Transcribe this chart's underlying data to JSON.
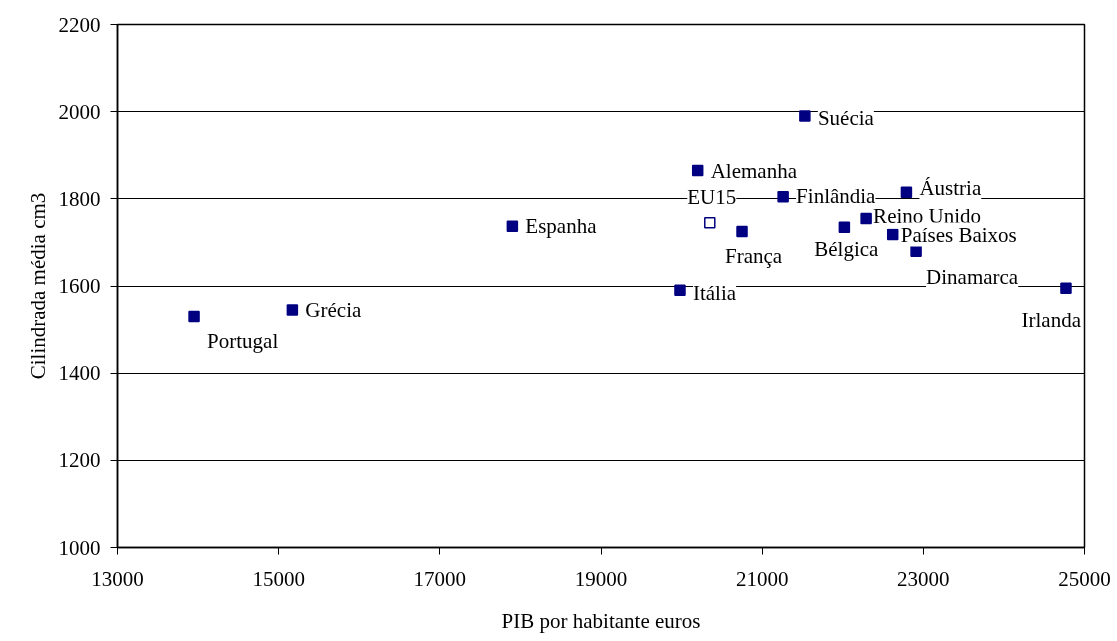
{
  "chart_data": {
    "type": "scatter",
    "xlabel": "PIB por habitante euros",
    "ylabel": "Cilindrada média cm3",
    "xlim": [
      13000,
      25000
    ],
    "xticks": [
      13000,
      15000,
      17000,
      19000,
      21000,
      23000,
      25000
    ],
    "ylim": [
      1000,
      2200
    ],
    "yticks": [
      1000,
      1200,
      1400,
      1600,
      1800,
      2000,
      2200
    ],
    "grid": "y",
    "series": [
      {
        "color": "#000080",
        "marker": "square",
        "x": [
          13950,
          15170,
          17900,
          19980,
          20200,
          20750,
          21260,
          21530,
          22020,
          22290,
          22620,
          22790,
          22910,
          24770
        ],
        "values": [
          1530,
          1545,
          1737,
          1590,
          1865,
          1725,
          1805,
          1990,
          1735,
          1755,
          1718,
          1815,
          1680,
          1595
        ]
      },
      {
        "color": "#000080",
        "marker": "square_open",
        "x": [
          20350
        ],
        "values": [
          1745
        ]
      }
    ],
    "annotations": [
      {
        "text": "Portugal",
        "x": 13950,
        "y": 1530
      },
      {
        "text": "Grécia",
        "x": 15170,
        "y": 1545
      },
      {
        "text": "Espanha",
        "x": 17900,
        "y": 1737
      },
      {
        "text": "Itália",
        "x": 19980,
        "y": 1590
      },
      {
        "text": "Alemanha",
        "x": 20200,
        "y": 1865
      },
      {
        "text": "França",
        "x": 20750,
        "y": 1725
      },
      {
        "text": "Finlândia",
        "x": 21260,
        "y": 1805
      },
      {
        "text": "Suécia",
        "x": 21530,
        "y": 1990
      },
      {
        "text": "Bélgica",
        "x": 22020,
        "y": 1735
      },
      {
        "text": "Reino Unido",
        "x": 22290,
        "y": 1755
      },
      {
        "text": "Países Baixos",
        "x": 22620,
        "y": 1718
      },
      {
        "text": "Áustria",
        "x": 22790,
        "y": 1815
      },
      {
        "text": "Dinamarca",
        "x": 22910,
        "y": 1680
      },
      {
        "text": "Irlanda",
        "x": 24770,
        "y": 1595
      },
      {
        "text": "EU15",
        "x": 20350,
        "y": 1745
      }
    ]
  }
}
